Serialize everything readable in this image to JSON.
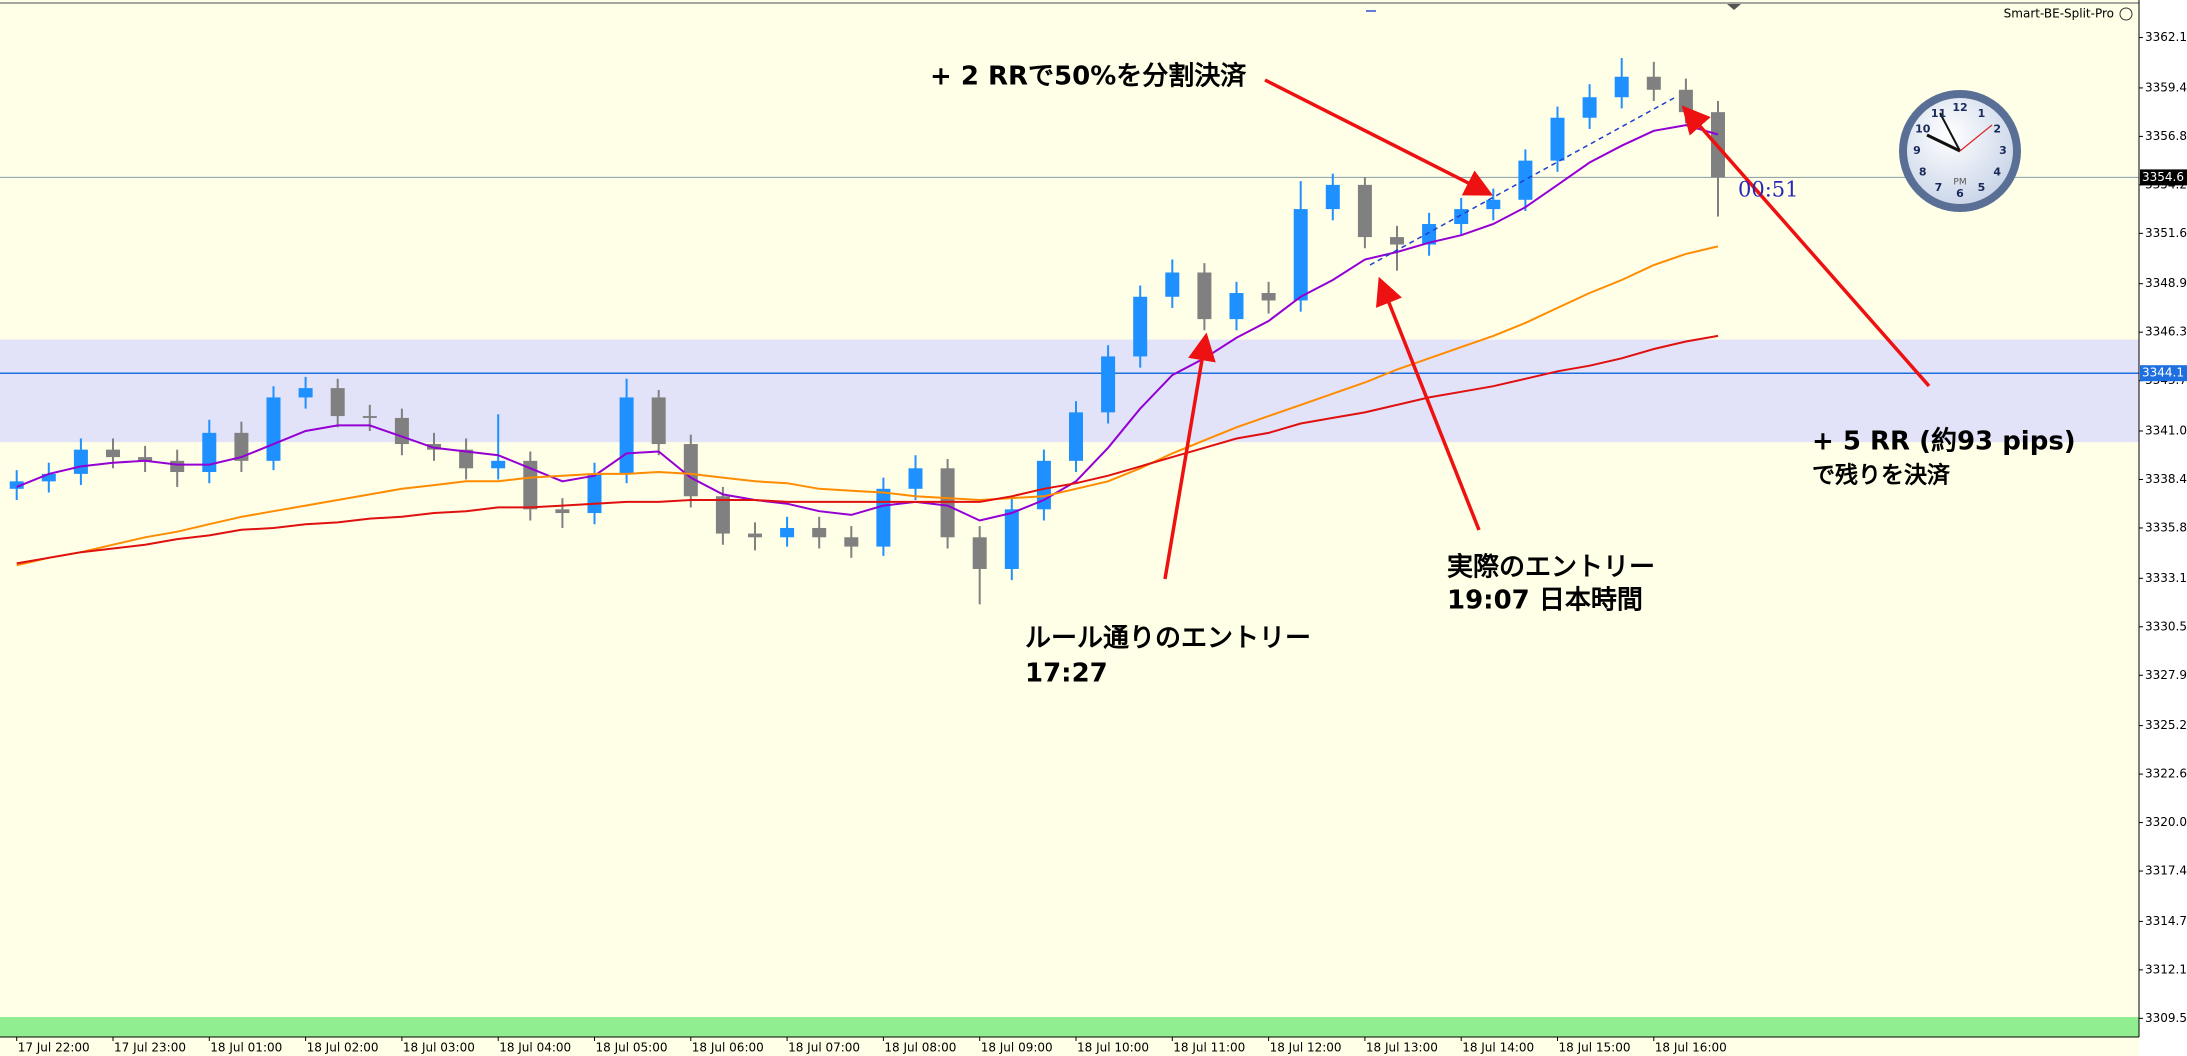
{
  "top_label": "Smart-BE-Split-Pro",
  "chart_data": {
    "type": "candlestick",
    "categories": [
      "17 Jul 22:00",
      null,
      null,
      "17 Jul 23:00",
      null,
      null,
      "18 Jul 01:00",
      null,
      null,
      "18 Jul 02:00",
      null,
      null,
      "18 Jul 03:00",
      null,
      null,
      "18 Jul 04:00",
      null,
      null,
      "18 Jul 05:00",
      null,
      null,
      "18 Jul 06:00",
      null,
      null,
      "18 Jul 07:00",
      null,
      null,
      "18 Jul 08:00",
      null,
      null,
      "18 Jul 09:00",
      null,
      null,
      "18 Jul 10:00",
      null,
      null,
      "18 Jul 11:00",
      null,
      null,
      "18 Jul 12:00",
      null,
      null,
      "18 Jul 13:00",
      null,
      null,
      "18 Jul 14:00",
      null,
      null,
      "18 Jul 15:00",
      null,
      null,
      "18 Jul 16:00",
      null,
      null
    ],
    "open": [
      3337.9,
      3338.3,
      3338.7,
      3340.0,
      3339.6,
      3339.4,
      3338.8,
      3340.9,
      3339.4,
      3342.8,
      3343.3,
      3341.8,
      3341.7,
      3340.3,
      3340.0,
      3339.0,
      3339.4,
      3336.8,
      3336.6,
      3338.7,
      3342.8,
      3340.3,
      3337.5,
      3335.5,
      3335.3,
      3335.8,
      3335.3,
      3334.8,
      3337.9,
      3339.0,
      3335.3,
      3333.6,
      3336.8,
      3339.4,
      3342.0,
      3345.0,
      3348.2,
      3349.5,
      3347.0,
      3348.4,
      3348.0,
      3352.9,
      3354.2,
      3351.4,
      3351.0,
      3352.1,
      3352.9,
      3353.4,
      3355.5,
      3357.8,
      3358.9,
      3360.0,
      3359.3,
      3358.1
    ],
    "high": [
      3338.9,
      3339.3,
      3340.6,
      3340.6,
      3340.2,
      3340.0,
      3341.6,
      3341.5,
      3343.4,
      3343.9,
      3343.8,
      3342.4,
      3342.2,
      3340.9,
      3340.6,
      3341.9,
      3339.9,
      3337.4,
      3339.3,
      3343.8,
      3343.2,
      3340.8,
      3338.0,
      3336.1,
      3336.4,
      3336.4,
      3335.9,
      3338.5,
      3339.7,
      3339.5,
      3335.9,
      3337.4,
      3340.0,
      3342.6,
      3345.6,
      3348.8,
      3350.2,
      3350.0,
      3349.0,
      3349.0,
      3354.4,
      3354.8,
      3354.6,
      3352.0,
      3352.7,
      3353.5,
      3354.0,
      3356.1,
      3358.4,
      3359.6,
      3361.0,
      3360.8,
      3359.9,
      3358.7
    ],
    "low": [
      3337.3,
      3337.7,
      3338.1,
      3339.0,
      3338.8,
      3338.0,
      3338.2,
      3338.8,
      3338.9,
      3342.2,
      3341.2,
      3341.0,
      3339.7,
      3339.4,
      3338.4,
      3338.4,
      3336.2,
      3335.8,
      3336.0,
      3338.2,
      3339.7,
      3336.9,
      3334.9,
      3334.6,
      3334.8,
      3334.7,
      3334.2,
      3334.3,
      3337.3,
      3334.7,
      3331.7,
      3333.0,
      3336.2,
      3338.8,
      3341.4,
      3344.4,
      3347.6,
      3346.4,
      3346.4,
      3347.3,
      3347.4,
      3352.3,
      3350.8,
      3349.6,
      3350.4,
      3351.5,
      3352.3,
      3352.8,
      3354.9,
      3357.2,
      3358.3,
      3358.7,
      3357.5,
      3352.5
    ],
    "close": [
      3338.3,
      3338.7,
      3340.0,
      3339.6,
      3339.4,
      3338.8,
      3340.9,
      3339.4,
      3342.8,
      3343.3,
      3341.8,
      3341.7,
      3340.3,
      3340.0,
      3339.0,
      3339.4,
      3336.8,
      3336.6,
      3338.7,
      3342.8,
      3340.3,
      3337.5,
      3335.5,
      3335.3,
      3335.8,
      3335.3,
      3334.8,
      3337.9,
      3339.0,
      3335.3,
      3333.6,
      3336.8,
      3339.4,
      3342.0,
      3345.0,
      3348.2,
      3349.5,
      3347.0,
      3348.4,
      3348.0,
      3352.9,
      3354.2,
      3351.4,
      3351.0,
      3352.1,
      3352.9,
      3353.4,
      3355.5,
      3357.8,
      3358.9,
      3360.0,
      3359.3,
      3358.1,
      3354.6
    ],
    "up_color": "#1e90ff",
    "down_color": "#808080",
    "lines": [
      {
        "color": "#9400d3",
        "values": [
          3338.0,
          3338.7,
          3339.1,
          3339.3,
          3339.4,
          3339.2,
          3339.2,
          3339.6,
          3340.3,
          3341.0,
          3341.3,
          3341.3,
          3340.7,
          3340.1,
          3339.9,
          3339.7,
          3339.0,
          3338.3,
          3338.6,
          3339.8,
          3339.9,
          3338.5,
          3337.6,
          3337.3,
          3337.1,
          3336.7,
          3336.5,
          3337.0,
          3337.2,
          3337.0,
          3336.2,
          3336.6,
          3337.3,
          3338.3,
          3340.1,
          3342.2,
          3344.0,
          3344.9,
          3346.0,
          3346.9,
          3348.2,
          3349.1,
          3350.2,
          3350.6,
          3351.1,
          3351.5,
          3352.1,
          3353.0,
          3354.2,
          3355.4,
          3356.3,
          3357.1,
          3357.4,
          3356.9
        ]
      },
      {
        "color": "#ff8c00",
        "values": [
          3333.8,
          3334.2,
          3334.5,
          3334.9,
          3335.3,
          3335.6,
          3336.0,
          3336.4,
          3336.7,
          3337.0,
          3337.3,
          3337.6,
          3337.9,
          3338.1,
          3338.3,
          3338.3,
          3338.5,
          3338.6,
          3338.7,
          3338.7,
          3338.8,
          3338.7,
          3338.5,
          3338.3,
          3338.2,
          3337.9,
          3337.8,
          3337.7,
          3337.5,
          3337.4,
          3337.3,
          3337.4,
          3337.5,
          3337.9,
          3338.3,
          3339.0,
          3339.8,
          3340.5,
          3341.2,
          3341.8,
          3342.4,
          3343.0,
          3343.6,
          3344.3,
          3344.9,
          3345.5,
          3346.1,
          3346.8,
          3347.6,
          3348.4,
          3349.1,
          3349.9,
          3350.5,
          3350.9
        ]
      },
      {
        "color": "#e01010",
        "values": [
          3333.9,
          3334.2,
          3334.5,
          3334.7,
          3334.9,
          3335.2,
          3335.4,
          3335.7,
          3335.8,
          3336.0,
          3336.1,
          3336.3,
          3336.4,
          3336.6,
          3336.7,
          3336.9,
          3336.9,
          3337.0,
          3337.1,
          3337.2,
          3337.2,
          3337.3,
          3337.3,
          3337.3,
          3337.2,
          3337.2,
          3337.2,
          3337.2,
          3337.2,
          3337.2,
          3337.2,
          3337.5,
          3337.9,
          3338.2,
          3338.6,
          3339.1,
          3339.6,
          3340.1,
          3340.6,
          3340.9,
          3341.4,
          3341.7,
          3342.0,
          3342.4,
          3342.8,
          3343.1,
          3343.4,
          3343.8,
          3344.2,
          3344.5,
          3344.9,
          3345.4,
          3345.8,
          3346.1
        ]
      }
    ],
    "ylim": [
      3308.5,
      3363.9
    ],
    "yticks": [
      3362.1,
      3359.4,
      3356.8,
      3354.2,
      3351.6,
      3348.9,
      3346.3,
      3343.7,
      {
        "value": 3341.0,
        "label": "3341.0"
      },
      3338.4,
      3335.8,
      3333.1,
      3330.5,
      3327.9,
      3325.2,
      3322.6,
      {
        "value": 3320.0,
        "label": "3320.0"
      },
      3317.4,
      3314.7,
      3312.1,
      3309.5
    ],
    "zone": [
      3340.4,
      3345.9
    ],
    "zone_color": "#e2e2f8",
    "bid_line": 3354.6,
    "level_line": 3344.1,
    "level_color": "#1e6fe0",
    "timer": "00:51",
    "annotations": [
      "+ 2 RRで50%を分割決済",
      "ルール通りのエントリー",
      "17:27",
      "実際のエントリー",
      "19:07 日本時間",
      "+ 5 RR (約93 pips)",
      "で残りを決済"
    ]
  },
  "clock": {
    "numbers": [
      12,
      1,
      2,
      3,
      4,
      5,
      6,
      7,
      8,
      9,
      10,
      11
    ],
    "period": "PM"
  }
}
